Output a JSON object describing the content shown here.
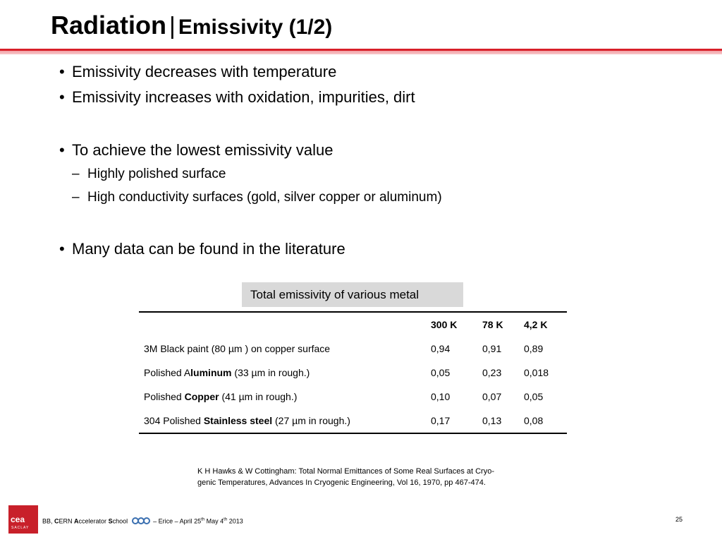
{
  "title": {
    "main": "Radiation",
    "separator": "|",
    "sub": "Emissivity (1/2)"
  },
  "bullets": [
    "Emissivity decreases with temperature",
    "Emissivity increases with oxidation, impurities, dirt",
    "To achieve the lowest emissivity value",
    "Many data can be found in the literature"
  ],
  "bullet_marker": "•",
  "sub_marker": "–",
  "sub_bullets": [
    "Highly polished surface",
    "High conductivity surfaces (gold, silver copper or aluminum)"
  ],
  "table": {
    "caption": "Total emissivity of various metal",
    "headers": [
      "",
      "300 K",
      "78 K",
      "4,2 K"
    ],
    "rows": [
      {
        "pre": "3M Black paint (80 µm ) on copper surface",
        "bold": "",
        "post": "",
        "values": [
          "0,94",
          "0,91",
          "0,89"
        ]
      },
      {
        "pre": "Polished A",
        "bold": "luminum",
        "post": " (33 µm in rough.)",
        "values": [
          "0,05",
          "0,23",
          "0,018"
        ]
      },
      {
        "pre": "Polished ",
        "bold": "Copper",
        "post": "  (41  µm in rough.)",
        "values": [
          "0,10",
          "0,07",
          "0,05"
        ]
      },
      {
        "pre": "304 Polished ",
        "bold": "Stainless steel",
        "post": " (27  µm in rough.)",
        "values": [
          "0,17",
          "0,13",
          "0,08"
        ]
      }
    ]
  },
  "reference": {
    "line1": "K H Hawks & W Cottingham: Total Normal Emittances of Some Real Surfaces at Cryo-",
    "line2": "genic Temperatures, Advances In Cryogenic Engineering, Vol 16, 1970, pp 467-474."
  },
  "footer": {
    "logo_text": "cea",
    "logo_sub": "SACLAY",
    "author": "BB, ",
    "school_c": "C",
    "school_ern": "ERN ",
    "school_a": "A",
    "school_ccelerator": "ccelerator ",
    "school_s": "S",
    "school_chool": "chool",
    "event": "– Erice – April 25",
    "th1": "th",
    "event2": "  May 4",
    "th2": "th",
    "year": " 2013",
    "page": "25"
  },
  "colors": {
    "accent": "#d8202a",
    "caption_bg": "#d9d9d9",
    "logo_blue": "#3a6fb0"
  }
}
